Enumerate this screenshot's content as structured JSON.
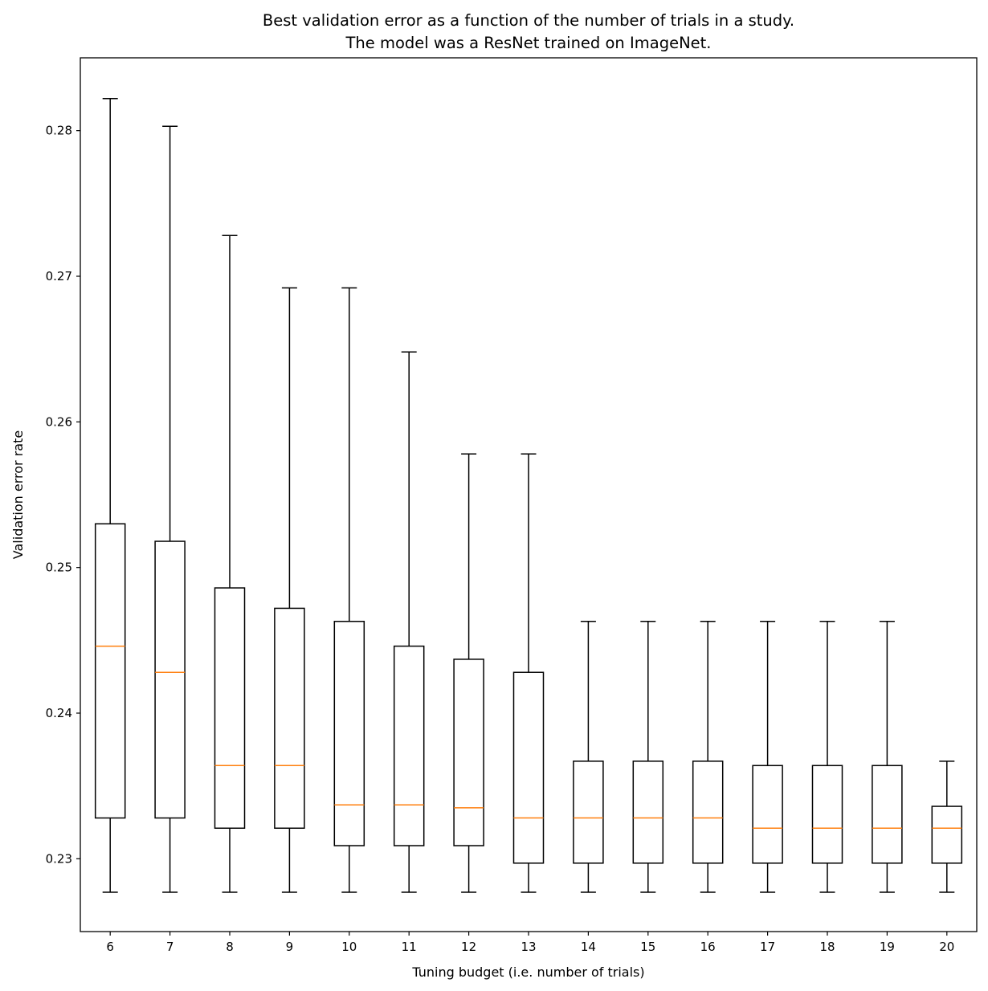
{
  "chart_data": {
    "type": "box",
    "title": [
      "Best validation error as a function of the number of trials in a study.",
      "The model was a ResNet trained on ImageNet."
    ],
    "xlabel": "Tuning budget (i.e. number of trials)",
    "ylabel": "Validation error rate",
    "ylim": [
      0.225,
      0.285
    ],
    "yticks": [
      0.23,
      0.24,
      0.25,
      0.26,
      0.27,
      0.28
    ],
    "ytick_labels": [
      "0.23",
      "0.24",
      "0.25",
      "0.26",
      "0.27",
      "0.28"
    ],
    "grid": false,
    "colors": {
      "box": "#000000",
      "median": "#ff7f0e"
    },
    "categories": [
      "6",
      "7",
      "8",
      "9",
      "10",
      "11",
      "12",
      "13",
      "14",
      "15",
      "16",
      "17",
      "18",
      "19",
      "20"
    ],
    "boxes": [
      {
        "whisker_low": 0.2277,
        "q1": 0.2328,
        "median": 0.2446,
        "q3": 0.253,
        "whisker_high": 0.2822
      },
      {
        "whisker_low": 0.2277,
        "q1": 0.2328,
        "median": 0.2428,
        "q3": 0.2518,
        "whisker_high": 0.2803
      },
      {
        "whisker_low": 0.2277,
        "q1": 0.2321,
        "median": 0.2364,
        "q3": 0.2486,
        "whisker_high": 0.2728
      },
      {
        "whisker_low": 0.2277,
        "q1": 0.2321,
        "median": 0.2364,
        "q3": 0.2472,
        "whisker_high": 0.2692
      },
      {
        "whisker_low": 0.2277,
        "q1": 0.2309,
        "median": 0.2337,
        "q3": 0.2463,
        "whisker_high": 0.2692
      },
      {
        "whisker_low": 0.2277,
        "q1": 0.2309,
        "median": 0.2337,
        "q3": 0.2446,
        "whisker_high": 0.2648
      },
      {
        "whisker_low": 0.2277,
        "q1": 0.2309,
        "median": 0.2335,
        "q3": 0.2437,
        "whisker_high": 0.2578
      },
      {
        "whisker_low": 0.2277,
        "q1": 0.2297,
        "median": 0.2328,
        "q3": 0.2428,
        "whisker_high": 0.2578
      },
      {
        "whisker_low": 0.2277,
        "q1": 0.2297,
        "median": 0.2328,
        "q3": 0.2367,
        "whisker_high": 0.2463
      },
      {
        "whisker_low": 0.2277,
        "q1": 0.2297,
        "median": 0.2328,
        "q3": 0.2367,
        "whisker_high": 0.2463
      },
      {
        "whisker_low": 0.2277,
        "q1": 0.2297,
        "median": 0.2328,
        "q3": 0.2367,
        "whisker_high": 0.2463
      },
      {
        "whisker_low": 0.2277,
        "q1": 0.2297,
        "median": 0.2321,
        "q3": 0.2364,
        "whisker_high": 0.2463
      },
      {
        "whisker_low": 0.2277,
        "q1": 0.2297,
        "median": 0.2321,
        "q3": 0.2364,
        "whisker_high": 0.2463
      },
      {
        "whisker_low": 0.2277,
        "q1": 0.2297,
        "median": 0.2321,
        "q3": 0.2364,
        "whisker_high": 0.2463
      },
      {
        "whisker_low": 0.2277,
        "q1": 0.2297,
        "median": 0.2321,
        "q3": 0.2336,
        "whisker_high": 0.2367
      }
    ]
  }
}
